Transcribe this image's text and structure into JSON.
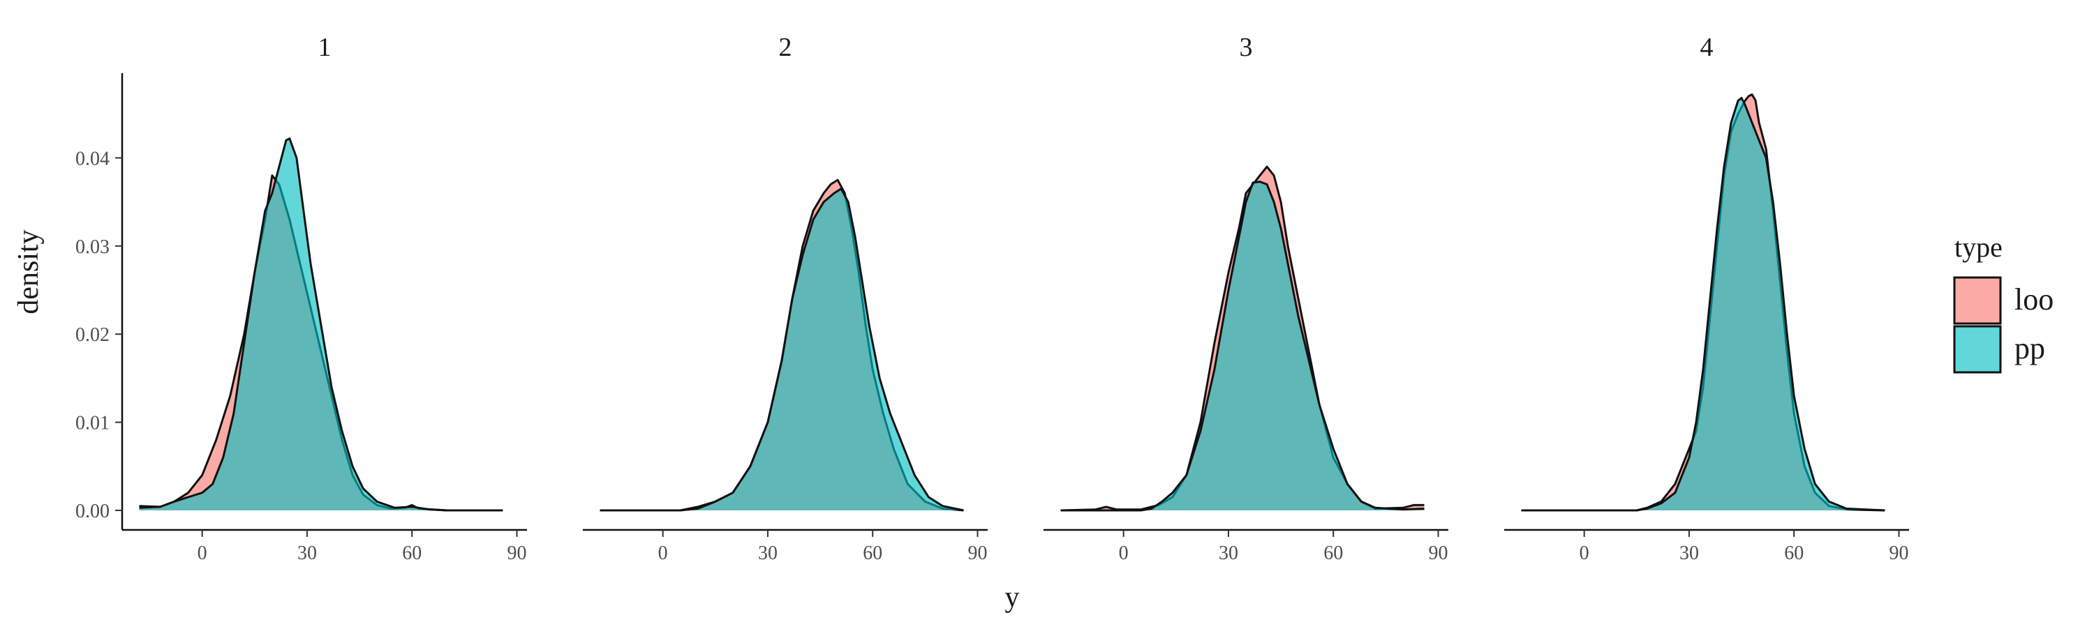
{
  "chart_data": {
    "type": "area",
    "xlabel": "y",
    "ylabel": "density",
    "xlim": [
      -20,
      90
    ],
    "ylim": [
      0,
      0.047
    ],
    "x_ticks": [
      0,
      30,
      60,
      90
    ],
    "y_ticks": [
      0,
      0.01,
      0.02,
      0.03,
      0.04
    ],
    "y_tick_labels": [
      "0.00",
      "0.01",
      "0.02",
      "0.03",
      "0.04"
    ],
    "legend": {
      "title": "type",
      "placement": "right",
      "entries": [
        {
          "label": "loo",
          "color": "#F8766D"
        },
        {
          "label": "pp",
          "color": "#00BFC4"
        }
      ]
    },
    "grid": false,
    "facet_by": "panel",
    "panels": [
      {
        "label": "1",
        "series": [
          {
            "name": "loo",
            "points": [
              [
                -18,
                0.0005
              ],
              [
                -12,
                0.0004
              ],
              [
                -8,
                0.001
              ],
              [
                -4,
                0.002
              ],
              [
                0,
                0.004
              ],
              [
                4,
                0.008
              ],
              [
                8,
                0.013
              ],
              [
                12,
                0.02
              ],
              [
                15,
                0.027
              ],
              [
                18,
                0.033
              ],
              [
                20,
                0.038
              ],
              [
                22,
                0.037
              ],
              [
                25,
                0.033
              ],
              [
                28,
                0.028
              ],
              [
                31,
                0.023
              ],
              [
                34,
                0.018
              ],
              [
                37,
                0.013
              ],
              [
                40,
                0.008
              ],
              [
                43,
                0.004
              ],
              [
                46,
                0.0018
              ],
              [
                50,
                0.0006
              ],
              [
                54,
                0.0002
              ],
              [
                58,
                0.0003
              ],
              [
                60,
                0.0006
              ],
              [
                62,
                0.0002
              ],
              [
                70,
                0
              ],
              [
                86,
                0
              ]
            ]
          },
          {
            "name": "pp",
            "points": [
              [
                -18,
                0.0003
              ],
              [
                -12,
                0.0004
              ],
              [
                -8,
                0.001
              ],
              [
                -4,
                0.0015
              ],
              [
                0,
                0.002
              ],
              [
                3,
                0.003
              ],
              [
                6,
                0.006
              ],
              [
                9,
                0.011
              ],
              [
                12,
                0.019
              ],
              [
                15,
                0.027
              ],
              [
                18,
                0.034
              ],
              [
                20,
                0.036
              ],
              [
                22,
                0.039
              ],
              [
                24,
                0.042
              ],
              [
                25,
                0.0422
              ],
              [
                27,
                0.04
              ],
              [
                29,
                0.034
              ],
              [
                31,
                0.028
              ],
              [
                34,
                0.021
              ],
              [
                37,
                0.014
              ],
              [
                40,
                0.009
              ],
              [
                43,
                0.005
              ],
              [
                46,
                0.0025
              ],
              [
                50,
                0.001
              ],
              [
                55,
                0.0003
              ],
              [
                60,
                0.0004
              ],
              [
                65,
                0.0001
              ],
              [
                70,
                0
              ],
              [
                86,
                0
              ]
            ]
          }
        ]
      },
      {
        "label": "2",
        "series": [
          {
            "name": "loo",
            "points": [
              [
                -18,
                0
              ],
              [
                5,
                0
              ],
              [
                10,
                0.0004
              ],
              [
                15,
                0.001
              ],
              [
                20,
                0.002
              ],
              [
                25,
                0.005
              ],
              [
                30,
                0.01
              ],
              [
                34,
                0.017
              ],
              [
                37,
                0.024
              ],
              [
                40,
                0.03
              ],
              [
                43,
                0.034
              ],
              [
                46,
                0.036
              ],
              [
                48,
                0.037
              ],
              [
                50,
                0.0375
              ],
              [
                52,
                0.036
              ],
              [
                54,
                0.032
              ],
              [
                56,
                0.027
              ],
              [
                58,
                0.021
              ],
              [
                60,
                0.016
              ],
              [
                63,
                0.011
              ],
              [
                66,
                0.007
              ],
              [
                70,
                0.003
              ],
              [
                75,
                0.001
              ],
              [
                80,
                0.0002
              ],
              [
                86,
                0
              ]
            ]
          },
          {
            "name": "pp",
            "points": [
              [
                -18,
                0
              ],
              [
                5,
                0
              ],
              [
                10,
                0.0002
              ],
              [
                15,
                0.001
              ],
              [
                20,
                0.002
              ],
              [
                25,
                0.005
              ],
              [
                30,
                0.01
              ],
              [
                34,
                0.017
              ],
              [
                37,
                0.024
              ],
              [
                40,
                0.029
              ],
              [
                43,
                0.033
              ],
              [
                46,
                0.035
              ],
              [
                49,
                0.036
              ],
              [
                51,
                0.0365
              ],
              [
                53,
                0.035
              ],
              [
                55,
                0.031
              ],
              [
                57,
                0.026
              ],
              [
                59,
                0.021
              ],
              [
                62,
                0.015
              ],
              [
                65,
                0.011
              ],
              [
                68,
                0.008
              ],
              [
                72,
                0.004
              ],
              [
                76,
                0.0015
              ],
              [
                80,
                0.0005
              ],
              [
                86,
                0
              ]
            ]
          }
        ]
      },
      {
        "label": "3",
        "series": [
          {
            "name": "loo",
            "points": [
              [
                -18,
                0
              ],
              [
                -8,
                0.0001
              ],
              [
                -5,
                0.0004
              ],
              [
                -2,
                0.0001
              ],
              [
                5,
                0.0001
              ],
              [
                10,
                0.0006
              ],
              [
                14,
                0.0015
              ],
              [
                18,
                0.004
              ],
              [
                22,
                0.01
              ],
              [
                26,
                0.019
              ],
              [
                30,
                0.027
              ],
              [
                33,
                0.032
              ],
              [
                35,
                0.036
              ],
              [
                37,
                0.037
              ],
              [
                39,
                0.038
              ],
              [
                41,
                0.039
              ],
              [
                43,
                0.038
              ],
              [
                45,
                0.035
              ],
              [
                47,
                0.03
              ],
              [
                50,
                0.024
              ],
              [
                53,
                0.018
              ],
              [
                56,
                0.012
              ],
              [
                60,
                0.006
              ],
              [
                64,
                0.003
              ],
              [
                68,
                0.001
              ],
              [
                72,
                0.0002
              ],
              [
                80,
                0.0003
              ],
              [
                83,
                0.0006
              ],
              [
                86,
                0.0006
              ]
            ]
          },
          {
            "name": "pp",
            "points": [
              [
                -18,
                0
              ],
              [
                5,
                0
              ],
              [
                8,
                0.0002
              ],
              [
                11,
                0.001
              ],
              [
                14,
                0.002
              ],
              [
                18,
                0.004
              ],
              [
                22,
                0.009
              ],
              [
                26,
                0.016
              ],
              [
                30,
                0.025
              ],
              [
                33,
                0.031
              ],
              [
                35,
                0.035
              ],
              [
                37,
                0.0372
              ],
              [
                39,
                0.0373
              ],
              [
                41,
                0.037
              ],
              [
                43,
                0.035
              ],
              [
                45,
                0.032
              ],
              [
                47,
                0.028
              ],
              [
                50,
                0.022
              ],
              [
                53,
                0.017
              ],
              [
                56,
                0.012
              ],
              [
                60,
                0.007
              ],
              [
                64,
                0.003
              ],
              [
                68,
                0.001
              ],
              [
                72,
                0.0003
              ],
              [
                80,
                0.0001
              ],
              [
                86,
                0.0002
              ]
            ]
          }
        ]
      },
      {
        "label": "4",
        "series": [
          {
            "name": "loo",
            "points": [
              [
                -18,
                0
              ],
              [
                15,
                0
              ],
              [
                18,
                0.0003
              ],
              [
                22,
                0.001
              ],
              [
                26,
                0.003
              ],
              [
                28,
                0.005
              ],
              [
                30,
                0.007
              ],
              [
                32,
                0.009
              ],
              [
                34,
                0.014
              ],
              [
                36,
                0.022
              ],
              [
                38,
                0.03
              ],
              [
                40,
                0.038
              ],
              [
                42,
                0.043
              ],
              [
                44,
                0.045
              ],
              [
                46,
                0.0465
              ],
              [
                47,
                0.047
              ],
              [
                48,
                0.0472
              ],
              [
                49,
                0.0465
              ],
              [
                50,
                0.044
              ],
              [
                52,
                0.041
              ],
              [
                54,
                0.034
              ],
              [
                56,
                0.026
              ],
              [
                58,
                0.018
              ],
              [
                60,
                0.011
              ],
              [
                63,
                0.005
              ],
              [
                66,
                0.002
              ],
              [
                70,
                0.0005
              ],
              [
                75,
                0.0001
              ],
              [
                86,
                0
              ]
            ]
          },
          {
            "name": "pp",
            "points": [
              [
                -18,
                0
              ],
              [
                15,
                0
              ],
              [
                18,
                0.0002
              ],
              [
                22,
                0.0008
              ],
              [
                26,
                0.002
              ],
              [
                28,
                0.004
              ],
              [
                30,
                0.006
              ],
              [
                32,
                0.01
              ],
              [
                34,
                0.016
              ],
              [
                36,
                0.024
              ],
              [
                38,
                0.032
              ],
              [
                40,
                0.039
              ],
              [
                42,
                0.044
              ],
              [
                44,
                0.0465
              ],
              [
                45,
                0.0468
              ],
              [
                46,
                0.046
              ],
              [
                48,
                0.044
              ],
              [
                50,
                0.042
              ],
              [
                52,
                0.04
              ],
              [
                54,
                0.035
              ],
              [
                56,
                0.028
              ],
              [
                58,
                0.02
              ],
              [
                60,
                0.013
              ],
              [
                63,
                0.007
              ],
              [
                66,
                0.003
              ],
              [
                70,
                0.001
              ],
              [
                75,
                0.0002
              ],
              [
                86,
                0
              ]
            ]
          }
        ]
      }
    ]
  }
}
